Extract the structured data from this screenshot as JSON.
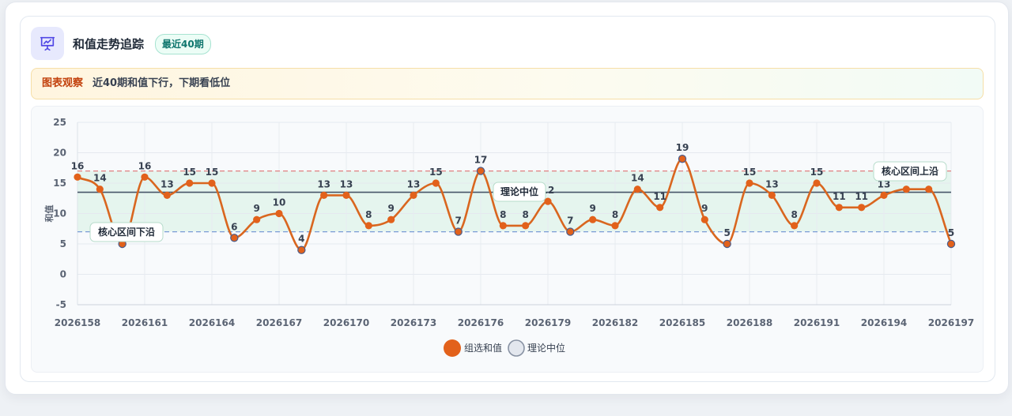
{
  "header": {
    "title": "和值走势追踪",
    "badge": "最近40期",
    "icon": "presentation-chart-icon"
  },
  "observation": {
    "tag": "图表观察",
    "text": "近40期和值下行，下期看低位"
  },
  "colors": {
    "line": "#d9661f",
    "point": "#e2611b",
    "upper": "#e08080",
    "lower": "#7a9cd6",
    "median": "#475569",
    "band": "#dff3ea"
  },
  "chart_data": {
    "type": "line",
    "xlabel": "",
    "ylabel": "和值",
    "ylim": [
      -5,
      25
    ],
    "yticks": [
      "25",
      "20",
      "15",
      "10",
      "5",
      "0",
      "-5"
    ],
    "x_tick_labels": [
      "2026158",
      "2026161",
      "2026164",
      "2026167",
      "2026170",
      "2026173",
      "2026176",
      "2026179",
      "2026182",
      "2026185",
      "2026188",
      "2026191",
      "2026194",
      "2026197"
    ],
    "x": [
      "2026158",
      "2026159",
      "2026160",
      "2026161",
      "2026162",
      "2026163",
      "2026164",
      "2026165",
      "2026166",
      "2026167",
      "2026168",
      "2026169",
      "2026170",
      "2026171",
      "2026172",
      "2026173",
      "2026174",
      "2026175",
      "2026176",
      "2026177",
      "2026178",
      "2026179",
      "2026180",
      "2026181",
      "2026182",
      "2026183",
      "2026184",
      "2026185",
      "2026186",
      "2026187",
      "2026188",
      "2026189",
      "2026190",
      "2026191",
      "2026192",
      "2026193",
      "2026194",
      "2026195",
      "2026196",
      "2026197"
    ],
    "series": [
      {
        "name": "组选和值",
        "values": [
          16,
          14,
          5,
          16,
          13,
          15,
          15,
          6,
          9,
          10,
          4,
          13,
          13,
          8,
          9,
          13,
          15,
          7,
          17,
          8,
          8,
          12,
          7,
          9,
          8,
          14,
          11,
          19,
          9,
          5,
          15,
          13,
          8,
          15,
          11,
          11,
          13,
          14,
          14,
          5
        ]
      }
    ],
    "reference_lines": [
      {
        "label": "核心区间上沿",
        "value": 17,
        "style": "dashed"
      },
      {
        "label": "理论中位",
        "value": 13.5,
        "style": "solid"
      },
      {
        "label": "核心区间下沿",
        "value": 7,
        "style": "dashed"
      }
    ],
    "legend": [
      "组选和值",
      "理论中位"
    ],
    "legend_position": "bottom",
    "grid": true
  }
}
